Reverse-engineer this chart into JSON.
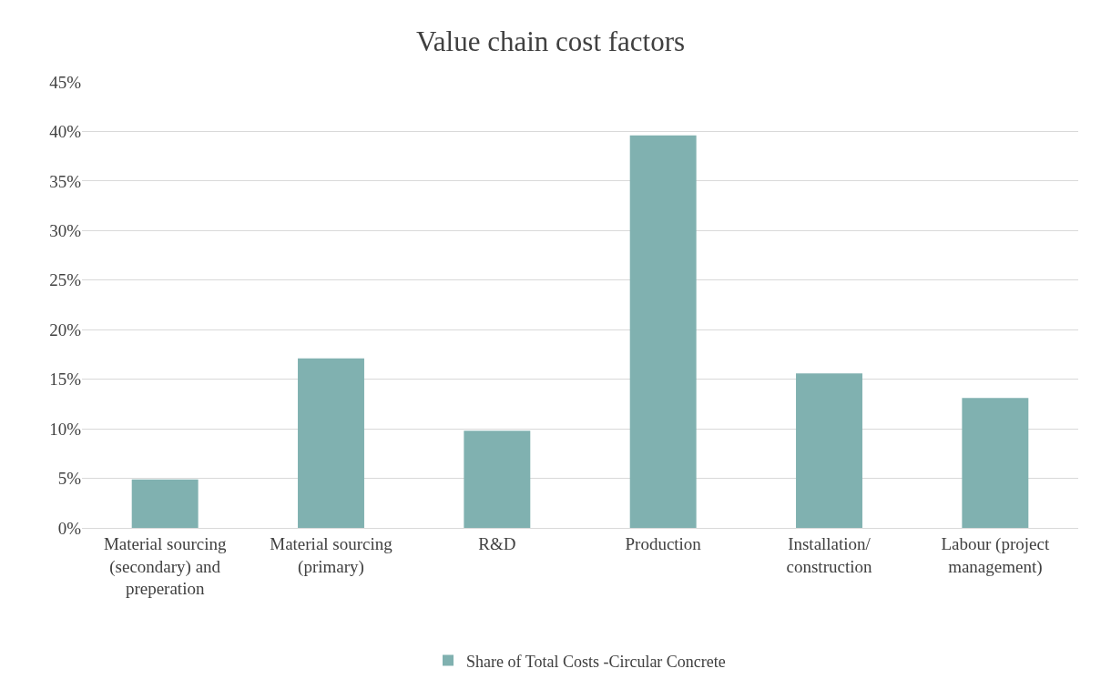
{
  "chart_data": {
    "type": "bar",
    "title": "Value chain cost factors",
    "categories": [
      "Material sourcing (secondary) and preperation",
      "Material sourcing (primary)",
      "R&D",
      "Production",
      "Installation/ construction",
      "Labour (project management)"
    ],
    "series": [
      {
        "name": "Share of Total Costs -Circular Concrete",
        "color": "#80b1b0",
        "values": [
          4.9,
          17.1,
          9.8,
          39.6,
          15.6,
          13.1
        ]
      }
    ],
    "ylim": [
      0,
      45
    ],
    "yticks": [
      {
        "value": 0,
        "label": "0%"
      },
      {
        "value": 5,
        "label": "5%"
      },
      {
        "value": 10,
        "label": "10%"
      },
      {
        "value": 15,
        "label": "15%"
      },
      {
        "value": 20,
        "label": "20%"
      },
      {
        "value": 25,
        "label": "25%"
      },
      {
        "value": 30,
        "label": "30%"
      },
      {
        "value": 35,
        "label": "35%"
      },
      {
        "value": 40,
        "label": "40%"
      },
      {
        "value": 45,
        "label": "45%"
      }
    ],
    "grid": "y",
    "legend": "bottom"
  }
}
